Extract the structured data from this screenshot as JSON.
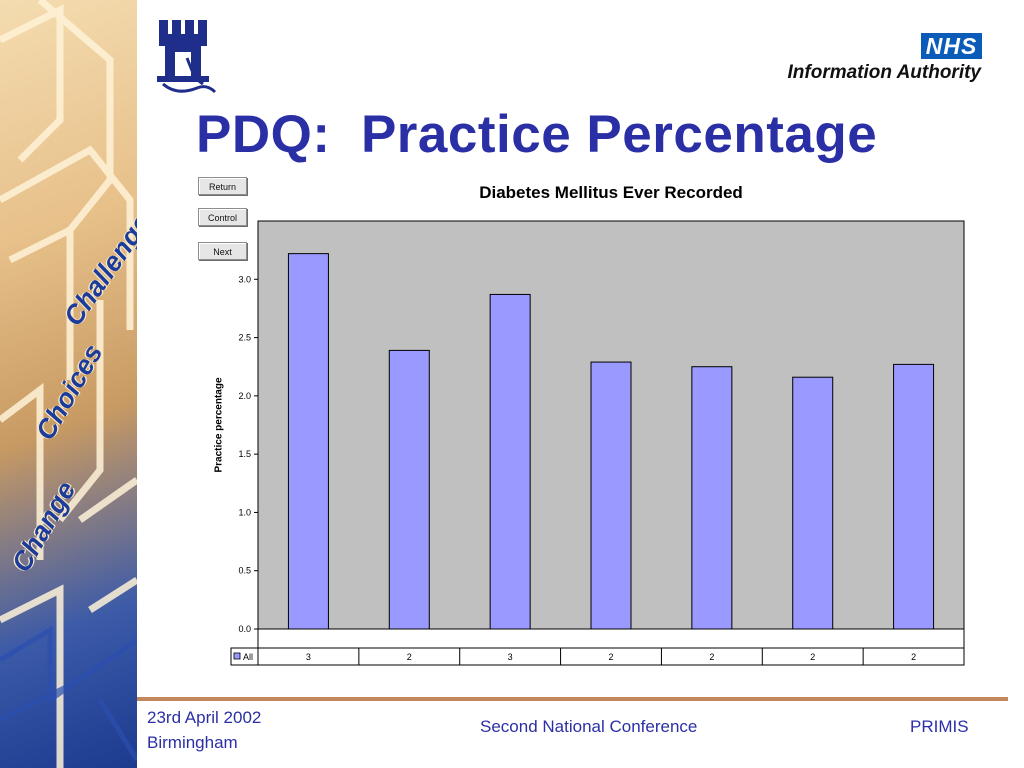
{
  "slide": {
    "title": "PDQ:  Practice Percentage",
    "logo": {
      "nhs": "NHS",
      "authority": "Information Authority"
    },
    "decor_words": [
      "Challenge",
      "Choices",
      "Change"
    ]
  },
  "nav": {
    "return_label": "Return",
    "control_label": "Control",
    "next_label": "Next"
  },
  "footer": {
    "date": "23rd April 2002",
    "place": "Birmingham",
    "conference": "Second National Conference",
    "org": "PRIMIS"
  },
  "colors": {
    "title": "#2b2fa6",
    "bar_fill": "#9999ff",
    "plot_bg": "#c0c0c0",
    "nhs_blue": "#0b5cb8",
    "footer_rule": "#c2875a"
  },
  "chart_data": {
    "type": "bar",
    "title": "Diabetes Mellitus Ever Recorded",
    "xlabel": "",
    "ylabel": "Practice percentage",
    "ylim": [
      0,
      3.5
    ],
    "yticks": [
      "0.0",
      "0.5",
      "1.0",
      "1.5",
      "2.0",
      "2.5",
      "3.0"
    ],
    "grid": false,
    "series": [
      {
        "name": "All",
        "values": [
          3.22,
          2.39,
          2.87,
          2.29,
          2.25,
          2.16,
          2.27
        ],
        "table_labels": [
          "3",
          "2",
          "3",
          "2",
          "2",
          "2",
          "2"
        ]
      }
    ]
  }
}
